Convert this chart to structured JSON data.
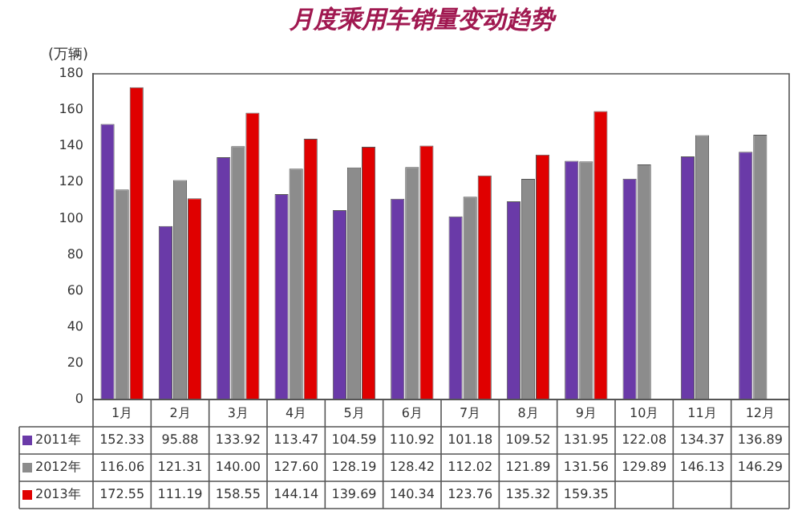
{
  "chart_data": {
    "type": "bar",
    "title": "月度乘用车销量变动趋势",
    "ylabel": "(万辆)",
    "categories": [
      "1月",
      "2月",
      "3月",
      "4月",
      "5月",
      "6月",
      "7月",
      "8月",
      "9月",
      "10月",
      "11月",
      "12月"
    ],
    "ylim": [
      0,
      180
    ],
    "yticks": [
      0,
      20,
      40,
      60,
      80,
      100,
      120,
      140,
      160,
      180
    ],
    "grid": false,
    "legend": "bottom left",
    "series": [
      {
        "name": "2011年",
        "color": "#6a3aa8",
        "values": [
          152.33,
          95.88,
          133.92,
          113.47,
          104.59,
          110.92,
          101.18,
          109.52,
          131.95,
          122.08,
          134.37,
          136.89
        ],
        "value_labels": [
          "152.33",
          "95.88",
          "133.92",
          "113.47",
          "104.59",
          "110.92",
          "101.18",
          "109.52",
          "131.95",
          "122.08",
          "134.37",
          "136.89"
        ]
      },
      {
        "name": "2012年",
        "color": "#8c8c8c",
        "values": [
          116.06,
          121.31,
          140.0,
          127.6,
          128.19,
          128.42,
          112.02,
          121.89,
          131.56,
          129.89,
          146.13,
          146.29
        ],
        "value_labels": [
          "116.06",
          "121.31",
          "140.00",
          "127.60",
          "128.19",
          "128.42",
          "112.02",
          "121.89",
          "131.56",
          "129.89",
          "146.13",
          "146.29"
        ]
      },
      {
        "name": "2013年",
        "color": "#e00000",
        "values": [
          172.55,
          111.19,
          158.55,
          144.14,
          139.69,
          140.34,
          123.76,
          135.32,
          159.35,
          null,
          null,
          null
        ],
        "value_labels": [
          "172.55",
          "111.19",
          "158.55",
          "144.14",
          "139.69",
          "140.34",
          "123.76",
          "135.32",
          "159.35",
          null,
          null,
          null
        ]
      }
    ]
  }
}
